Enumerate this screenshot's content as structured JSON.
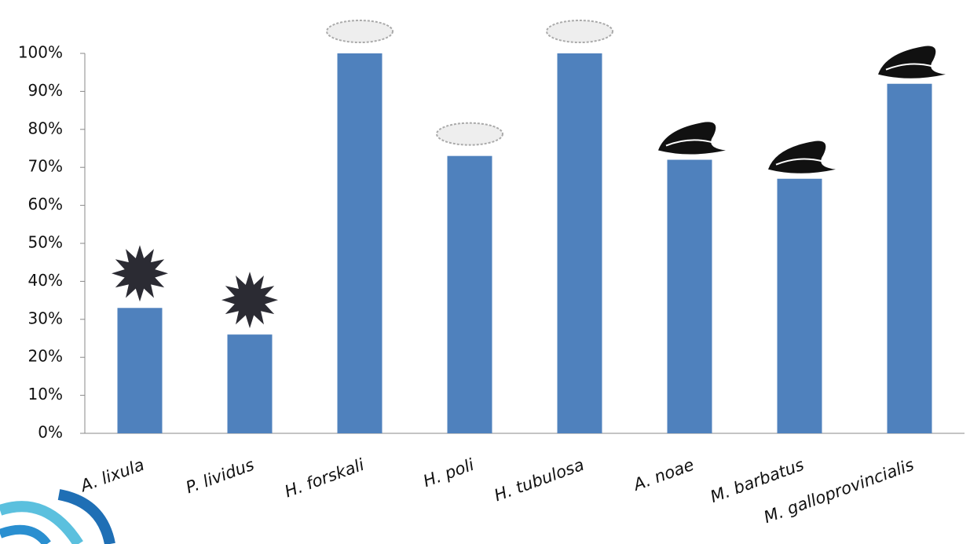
{
  "chart_data": {
    "type": "bar",
    "categories": [
      "A. lixula",
      "P. lividus",
      "H. forskali",
      "H. poli",
      "H. tubulosa",
      "A. noae",
      "M. barbatus",
      "M. galloprovincialis"
    ],
    "values": [
      33,
      26,
      100,
      73,
      100,
      72,
      67,
      92
    ],
    "color": "#4f81bd",
    "ylim": [
      0,
      100
    ],
    "yticks": [
      {
        "value": 0,
        "label": "0%"
      },
      {
        "value": 10,
        "label": "10%"
      },
      {
        "value": 20,
        "label": "20%"
      },
      {
        "value": 30,
        "label": "30%"
      },
      {
        "value": 40,
        "label": "40%"
      },
      {
        "value": 50,
        "label": "50%"
      },
      {
        "value": 60,
        "label": "60%"
      },
      {
        "value": 70,
        "label": "70%"
      },
      {
        "value": 80,
        "label": "80%"
      },
      {
        "value": 90,
        "label": "90%"
      },
      {
        "value": 100,
        "label": "100%"
      }
    ],
    "grid": false
  }
}
